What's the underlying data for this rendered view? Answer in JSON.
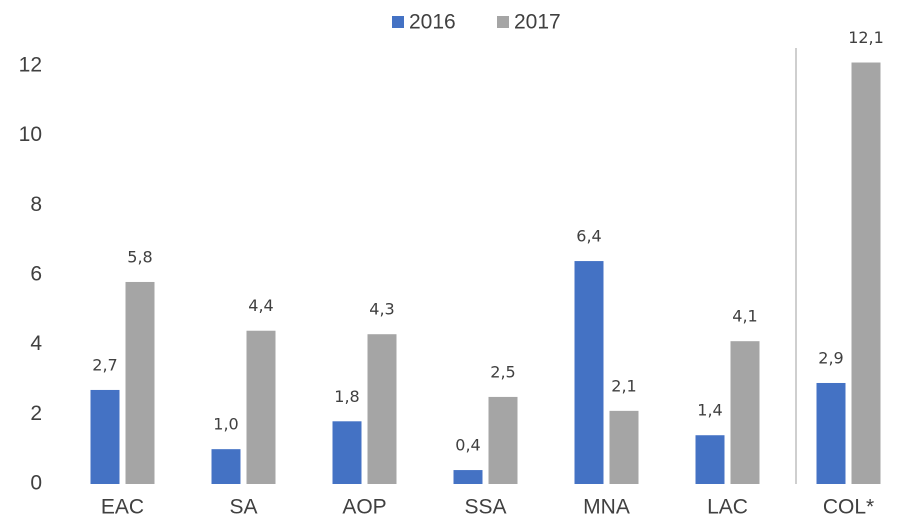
{
  "chart_data": {
    "type": "bar",
    "categories": [
      "EAC",
      "SA",
      "AOP",
      "SSA",
      "MNA",
      "LAC",
      "COL*"
    ],
    "series": [
      {
        "name": "2016",
        "color": "#4472c4",
        "values": [
          2.7,
          1.0,
          1.8,
          0.4,
          6.4,
          1.4,
          2.9
        ],
        "value_labels": [
          "2,7",
          "1,0",
          "1,8",
          "0,4",
          "6,4",
          "1,4",
          "2,9"
        ]
      },
      {
        "name": "2017",
        "color": "#a5a5a5",
        "values": [
          5.8,
          4.4,
          4.3,
          2.5,
          2.1,
          4.1,
          12.1
        ],
        "value_labels": [
          "5,8",
          "4,4",
          "4,3",
          "2,5",
          "2,1",
          "4,1",
          "12,1"
        ]
      }
    ],
    "ylim": [
      0,
      12
    ],
    "yticks": [
      0,
      2,
      4,
      6,
      8,
      10,
      12
    ],
    "grid": false,
    "legend": "top"
  }
}
